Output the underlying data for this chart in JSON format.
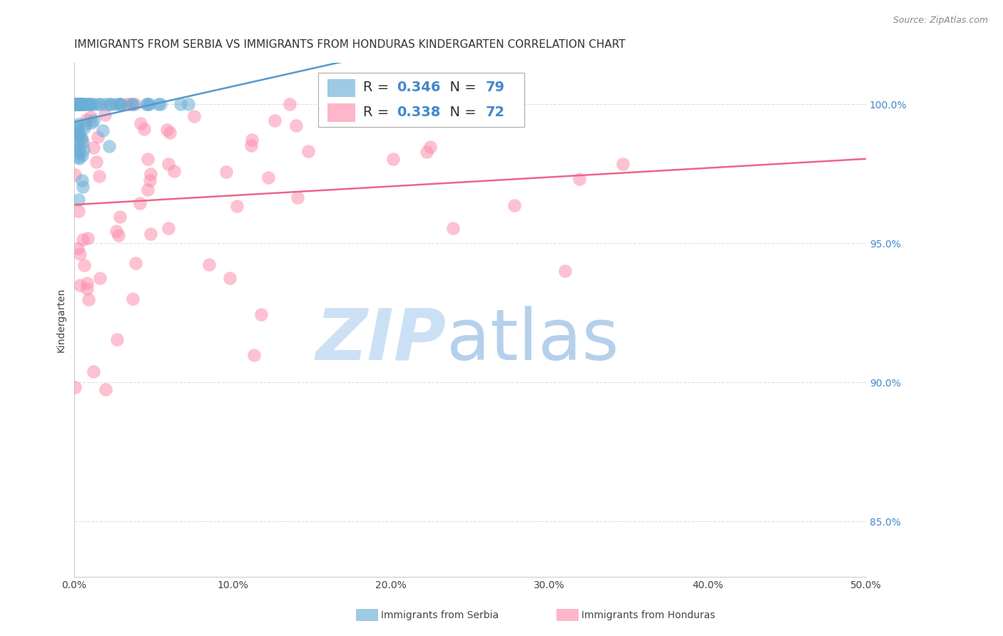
{
  "title": "IMMIGRANTS FROM SERBIA VS IMMIGRANTS FROM HONDURAS KINDERGARTEN CORRELATION CHART",
  "source": "Source: ZipAtlas.com",
  "ylabel": "Kindergarten",
  "xlim": [
    0.0,
    50.0
  ],
  "ylim": [
    83.0,
    101.5
  ],
  "yticks": [
    85.0,
    90.0,
    95.0,
    100.0
  ],
  "xticks": [
    0.0,
    10.0,
    20.0,
    30.0,
    40.0,
    50.0
  ],
  "serbia_color": "#6baed6",
  "honduras_color": "#fc8fae",
  "serbia_line_color": "#5599cc",
  "honduras_line_color": "#ee6688",
  "bg_color": "#ffffff",
  "grid_color": "#dddddd",
  "title_fontsize": 11,
  "label_fontsize": 10,
  "tick_fontsize": 10,
  "legend_R_serbia": "0.346",
  "legend_N_serbia": "79",
  "legend_R_honduras": "0.338",
  "legend_N_honduras": "72",
  "watermark_zip": "ZIP",
  "watermark_atlas": "atlas"
}
